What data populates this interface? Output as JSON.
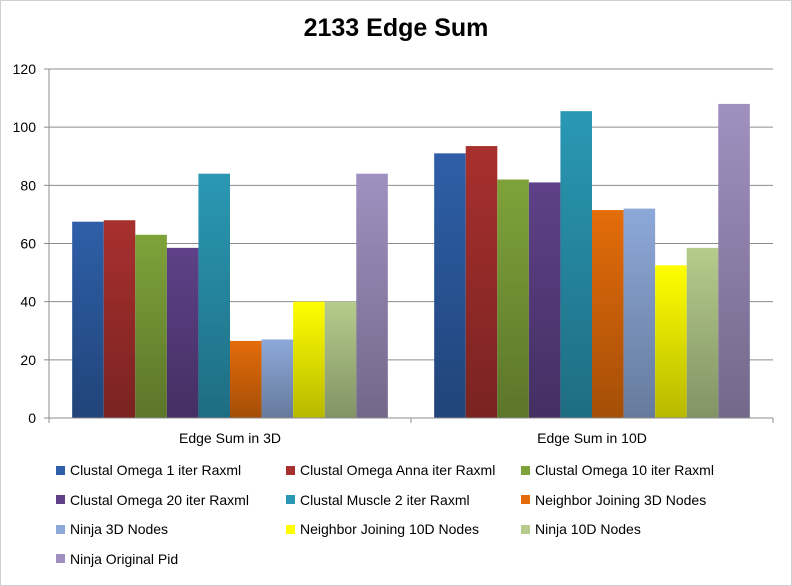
{
  "chart_data": {
    "type": "bar",
    "title": "2133 Edge Sum",
    "xlabel": "",
    "ylabel": "",
    "ylim": [
      0,
      120
    ],
    "yticks": [
      0,
      20,
      40,
      60,
      80,
      100,
      120
    ],
    "grid": true,
    "legend_position": "bottom",
    "categories": [
      "Edge Sum in 3D",
      "Edge Sum in 10D"
    ],
    "series": [
      {
        "name": "Clustal Omega 1 iter Raxml",
        "color": "#2E5FA8",
        "values": [
          67.5,
          91
        ]
      },
      {
        "name": "Clustal Omega Anna iter Raxml",
        "color": "#A8302E",
        "values": [
          68,
          93.5
        ]
      },
      {
        "name": "Clustal Omega 10 iter Raxml",
        "color": "#7FA33A",
        "values": [
          63,
          82
        ]
      },
      {
        "name": "Clustal Omega 20 iter Raxml",
        "color": "#5E4188",
        "values": [
          58.5,
          81
        ]
      },
      {
        "name": "Clustal Muscle 2 iter Raxml",
        "color": "#2A98B4",
        "values": [
          84,
          105.5
        ]
      },
      {
        "name": "Neighbor Joining 3D Nodes",
        "color": "#E46C0A",
        "values": [
          26.5,
          71.5
        ]
      },
      {
        "name": "Ninja 3D Nodes",
        "color": "#8DA9D9",
        "values": [
          27,
          72
        ]
      },
      {
        "name": "Neighbor Joining 10D Nodes",
        "color": "#FFFF00",
        "values": [
          40,
          52.5
        ]
      },
      {
        "name": "Ninja 10D Nodes",
        "color": "#B5CC8C",
        "values": [
          40,
          58.5
        ]
      },
      {
        "name": "Ninja Original Pid",
        "color": "#A090C0",
        "values": [
          84,
          108
        ]
      }
    ]
  }
}
